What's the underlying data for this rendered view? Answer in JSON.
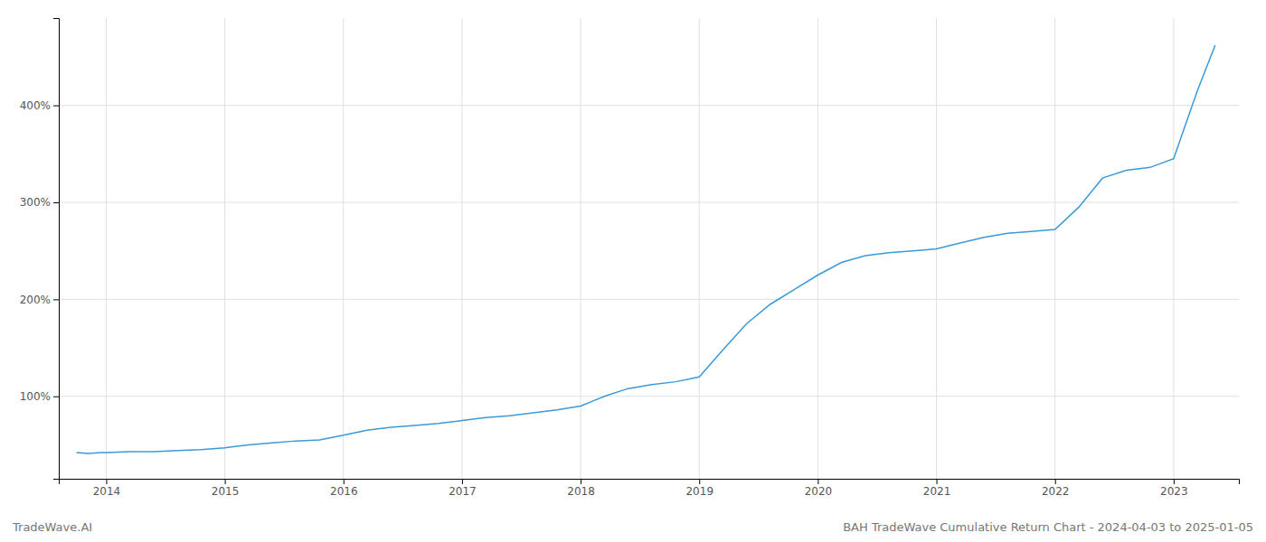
{
  "chart_data": {
    "type": "line",
    "title": "BAH TradeWave Cumulative Return Chart - 2024-04-03 to 2025-01-05",
    "annotations": [
      "TradeWave.AI"
    ],
    "color": "#3a9ad9",
    "grid": true,
    "xlim": [
      2013.6,
      2023.55
    ],
    "ylim": [
      15,
      490
    ],
    "xticks": [
      2014,
      2015,
      2016,
      2017,
      2018,
      2019,
      2020,
      2021,
      2022,
      2023
    ],
    "yticks": [
      {
        "value": 100,
        "label": "100%"
      },
      {
        "value": 200,
        "label": "200%"
      },
      {
        "value": 300,
        "label": "300%"
      },
      {
        "value": 400,
        "label": "400%"
      }
    ],
    "x": [
      2013.75,
      2013.85,
      2013.95,
      2014.0,
      2014.2,
      2014.4,
      2014.6,
      2014.8,
      2015.0,
      2015.2,
      2015.4,
      2015.6,
      2015.8,
      2016.0,
      2016.2,
      2016.4,
      2016.6,
      2016.8,
      2017.0,
      2017.2,
      2017.4,
      2017.6,
      2017.8,
      2018.0,
      2018.1,
      2018.2,
      2018.4,
      2018.6,
      2018.8,
      2019.0,
      2019.2,
      2019.4,
      2019.6,
      2019.8,
      2020.0,
      2020.2,
      2020.4,
      2020.6,
      2020.8,
      2021.0,
      2021.2,
      2021.4,
      2021.6,
      2021.8,
      2022.0,
      2022.2,
      2022.4,
      2022.6,
      2022.8,
      2023.0,
      2023.2,
      2023.35
    ],
    "values": [
      42,
      41,
      42,
      42,
      43,
      43,
      44,
      45,
      47,
      50,
      52,
      54,
      55,
      60,
      65,
      68,
      70,
      72,
      75,
      78,
      80,
      83,
      86,
      90,
      95,
      100,
      108,
      112,
      115,
      120,
      148,
      175,
      195,
      210,
      225,
      238,
      245,
      248,
      250,
      252,
      258,
      264,
      268,
      270,
      272,
      295,
      325,
      333,
      336,
      345,
      415,
      462
    ]
  }
}
